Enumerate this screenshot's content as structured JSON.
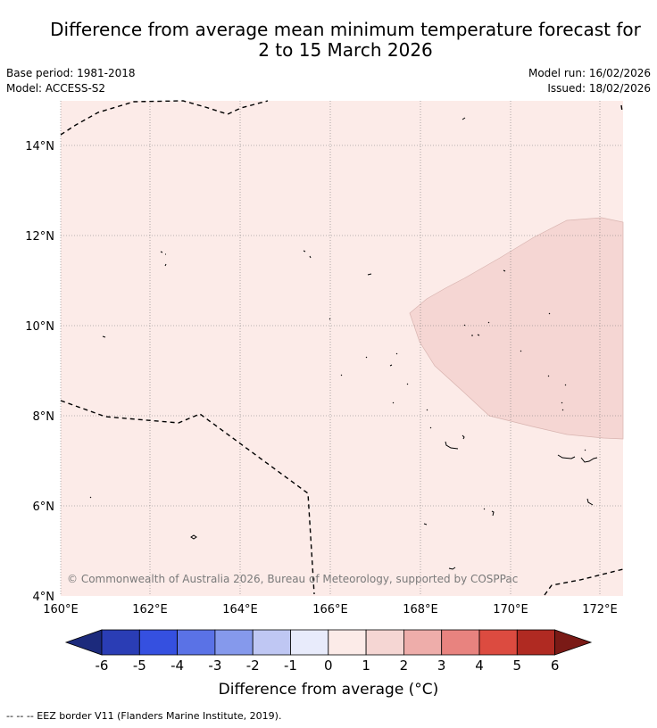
{
  "header": {
    "title_line1": "Difference from average mean minimum temperature forecast for",
    "title_line2": "2 to 15 March 2026",
    "base_period": "Base period: 1981-2018",
    "model": "Model: ACCESS-S2",
    "model_run": "Model run: 16/02/2026",
    "issued": "Issued: 18/02/2026"
  },
  "map": {
    "lon_labels": [
      "160°E",
      "162°E",
      "164°E",
      "166°E",
      "168°E",
      "170°E",
      "172°E"
    ],
    "lat_labels": [
      "14°N",
      "12°N",
      "10°N",
      "8°N",
      "6°N",
      "4°N"
    ],
    "copyright": "© Commonwealth of Australia 2026, Bureau of Meteorology, supported by COSPPac",
    "colors": {
      "background_anomaly_0_1": "#fcebe8",
      "anomaly_1_2": "#f5d6d3",
      "land_outline": "#000000",
      "grid": "#777777"
    }
  },
  "colorbar": {
    "tick_labels": [
      "-6",
      "-5",
      "-4",
      "-3",
      "-2",
      "-1",
      "0",
      "1",
      "2",
      "3",
      "4",
      "5",
      "6"
    ],
    "colors": [
      "#1c2a7c",
      "#2a3db5",
      "#3550e0",
      "#5a72e6",
      "#8599ec",
      "#bfc7f3",
      "#e8ebfb",
      "#fcebe8",
      "#f5d6d3",
      "#eeadaa",
      "#e8837f",
      "#dc4b40",
      "#b02a22",
      "#7a1a16"
    ],
    "title": "Difference from average (°C)"
  },
  "footnote": "-- -- -- EEZ border V11 (Flanders Marine Institute, 2019)."
}
